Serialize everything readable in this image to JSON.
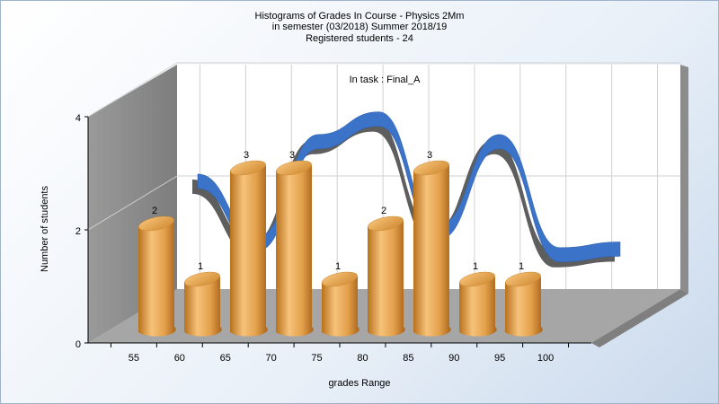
{
  "title_lines": [
    "Histograms of Grades  In Course - Physics 2Mm",
    "in semester  (03/2018) Summer 2018/19",
    "Registered students - 24"
  ],
  "chart_data": {
    "type": "bar",
    "subtitle": "In task : Final_A",
    "xlabel": "grades Range",
    "ylabel": "Number of students",
    "x_tick_labels": [
      "55",
      "60",
      "65",
      "70",
      "75",
      "80",
      "85",
      "90",
      "95",
      "100"
    ],
    "y_ticks": [
      0,
      2,
      4
    ],
    "ylim": [
      0,
      4
    ],
    "grid": true,
    "bars": [
      {
        "value": 2,
        "label": "2"
      },
      {
        "value": 1,
        "label": "1"
      },
      {
        "value": 3,
        "label": "3"
      },
      {
        "value": 3,
        "label": "3"
      },
      {
        "value": 1,
        "label": "1"
      },
      {
        "value": 2,
        "label": "2"
      },
      {
        "value": 3,
        "label": "3"
      },
      {
        "value": 1,
        "label": "1"
      },
      {
        "value": 1,
        "label": "1"
      }
    ],
    "ribbon_values": [
      2.7,
      1.6,
      3.4,
      3.8,
      1.8,
      3.4,
      1.4,
      1.5
    ],
    "colors": {
      "bar": "#e8a94c",
      "bar_dark": "#c77d1f",
      "ribbon": "#3a73c8",
      "back_wall": "#ffffff",
      "side_wall": "#8a8a8a",
      "floor": "#a8a8a8"
    }
  }
}
